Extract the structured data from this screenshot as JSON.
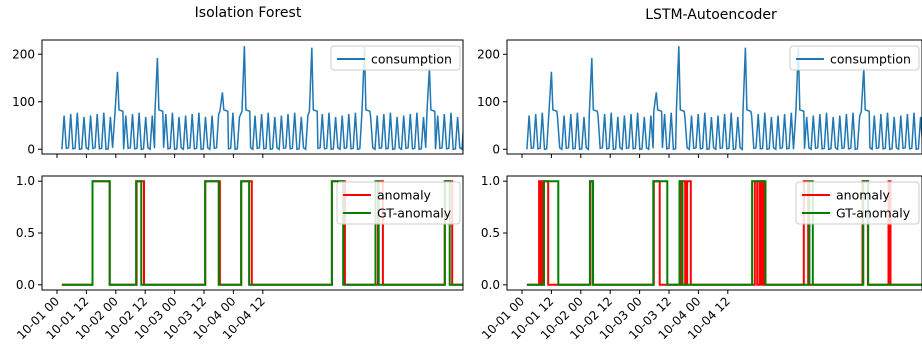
{
  "chart_data": [
    {
      "title": "Isolation Forest",
      "panels": [
        {
          "type": "line",
          "ylim": [
            -10,
            230
          ],
          "yticks": [
            0,
            100,
            200
          ],
          "legend": {
            "placement": "top-right",
            "entries": [
              "consumption"
            ]
          },
          "series": [
            {
              "name": "consumption",
              "color": "#1f77b4",
              "x": [
                "10-01 00",
                "10-04 12"
              ],
              "peaks": [
                {
                  "t": 24.7,
                  "value": 163
                },
                {
                  "t": 41.0,
                  "value": 192
                },
                {
                  "t": 67.5,
                  "value": 120
                },
                {
                  "t": 76.5,
                  "value": 217
                },
                {
                  "t": 104.0,
                  "value": 214
                },
                {
                  "t": 125.5,
                  "value": 215
                },
                {
                  "t": 152.0,
                  "value": 172
                }
              ],
              "low": 0,
              "high": 78,
              "plateau": 80
            }
          ]
        },
        {
          "type": "line",
          "ylim": [
            -0.05,
            1.05
          ],
          "yticks": [
            0.0,
            0.5,
            1.0
          ],
          "ytick_labels": [
            "0.0",
            "0.5",
            "1.0"
          ],
          "legend": {
            "placement": "top-right",
            "entries": [
              "anomaly",
              "GT-anomaly"
            ]
          },
          "series": [
            {
              "name": "anomaly",
              "color": "#ff0000",
              "intervals": [
                [
                  14.5,
                  21.5
                ],
                [
                  32.5,
                  35.5
                ],
                [
                  60.5,
                  66.5
                ],
                [
                  75.2,
                  79.5
                ],
                [
                  112.2,
                  117.5
                ],
                [
                  131.0,
                  133.0
                ],
                [
                  158.3,
                  161.3
                ]
              ]
            },
            {
              "name": "GT-anomaly",
              "color": "#008000",
              "intervals": [
                [
                  14.5,
                  21.5
                ],
                [
                  32.3,
                  34.4
                ],
                [
                  60.5,
                  66.0
                ],
                [
                  75.2,
                  78.4
                ],
                [
                  112.2,
                  116.8
                ],
                [
                  130.0,
                  131.3
                ],
                [
                  158.3,
                  160.3
                ]
              ]
            }
          ]
        }
      ],
      "xticks": [
        "10-01 00",
        "10-01 12",
        "10-02 00",
        "10-02 12",
        "10-03 00",
        "10-03 12",
        "10-04 00",
        "10-04 12"
      ]
    },
    {
      "title": "LSTM-Autoencoder",
      "panels": [
        {
          "type": "line",
          "ylim": [
            -10,
            230
          ],
          "yticks": [
            0,
            100,
            200
          ],
          "legend": {
            "placement": "top-right",
            "entries": [
              "consumption"
            ]
          },
          "series": [
            {
              "name": "consumption",
              "color": "#1f77b4",
              "peaks": [
                {
                  "t": 12.0,
                  "value": 163
                },
                {
                  "t": 28.5,
                  "value": 192
                },
                {
                  "t": 54.8,
                  "value": 120
                },
                {
                  "t": 64.0,
                  "value": 217
                },
                {
                  "t": 91.2,
                  "value": 214
                },
                {
                  "t": 112.8,
                  "value": 215
                },
                {
                  "t": 139.5,
                  "value": 172
                }
              ],
              "low": 0,
              "high": 78,
              "plateau": 80
            }
          ]
        },
        {
          "type": "line",
          "ylim": [
            -0.05,
            1.05
          ],
          "yticks": [
            0.0,
            0.5,
            1.0
          ],
          "ytick_labels": [
            "0.0",
            "0.5",
            "1.0"
          ],
          "legend": {
            "placement": "top-right",
            "entries": [
              "anomaly",
              "GT-anomaly"
            ]
          },
          "series": [
            {
              "name": "anomaly",
              "color": "#ff0000",
              "intervals": [
                [
                  7.0,
                  7.8
                ],
                [
                  8.1,
                  8.6
                ],
                [
                  9.0,
                  10.7
                ],
                [
                  27.8,
                  28.8
                ],
                [
                  53.8,
                  56.2
                ],
                [
                  64.4,
                  64.9
                ],
                [
                  65.3,
                  66.6
                ],
                [
                  67.4,
                  68.9
                ],
                [
                  95.0,
                  96.0
                ],
                [
                  97.0,
                  97.6
                ],
                [
                  98.0,
                  98.8
                ],
                [
                  115.0,
                  116.8
                ],
                [
                  139.0,
                  141.2
                ],
                [
                  149.6,
                  150.4
                ]
              ]
            },
            {
              "name": "GT-anomaly",
              "color": "#008000",
              "intervals": [
                [
                  9.0,
                  14.8
                ],
                [
                  27.7,
                  29.0
                ],
                [
                  53.6,
                  59.3
                ],
                [
                  64.3,
                  65.5
                ],
                [
                  93.9,
                  99.4
                ],
                [
                  117.3,
                  118.7
                ],
                [
                  139.3,
                  141.3
                ]
              ]
            }
          ]
        }
      ],
      "xticks": [
        "10-01 00",
        "10-01 12",
        "10-02 00",
        "10-02 12",
        "10-03 00",
        "10-03 12",
        "10-04 00",
        "10-04 12"
      ]
    }
  ]
}
